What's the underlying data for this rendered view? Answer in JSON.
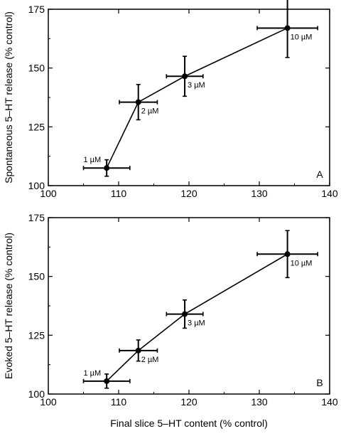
{
  "figure": {
    "xlabel": "Final slice 5–HT content (% control)"
  },
  "chart_data": [
    {
      "type": "scatter",
      "panel_label": "A",
      "ylabel": "Spontaneous 5–HT release (% control)",
      "xlim": [
        100,
        140
      ],
      "ylim": [
        100,
        175
      ],
      "x_ticks": [
        "100",
        "110",
        "120",
        "130",
        "140"
      ],
      "y_ticks": [
        "100",
        "125",
        "150",
        "175"
      ],
      "grid": false,
      "points": [
        {
          "label": "1 µM",
          "x": 108.3,
          "y": 107.5,
          "xerr": 3.3,
          "yerr": 3.5
        },
        {
          "label": "2 µM",
          "x": 112.8,
          "y": 135.5,
          "xerr": 2.7,
          "yerr": 7.5
        },
        {
          "label": "3 µM",
          "x": 119.4,
          "y": 146.5,
          "xerr": 2.6,
          "yerr": 8.5
        },
        {
          "label": "10 µM",
          "x": 134.0,
          "y": 167.0,
          "xerr": 4.3,
          "yerr": 12.5
        }
      ]
    },
    {
      "type": "scatter",
      "panel_label": "B",
      "ylabel": "Evoked 5–HT release (% control)",
      "xlim": [
        100,
        140
      ],
      "ylim": [
        100,
        175
      ],
      "x_ticks": [
        "100",
        "110",
        "120",
        "130",
        "140"
      ],
      "y_ticks": [
        "100",
        "125",
        "150",
        "175"
      ],
      "grid": false,
      "points": [
        {
          "label": "1 µM",
          "x": 108.3,
          "y": 105.5,
          "xerr": 3.3,
          "yerr": 3.0
        },
        {
          "label": "2 µM",
          "x": 112.8,
          "y": 118.5,
          "xerr": 2.7,
          "yerr": 4.5
        },
        {
          "label": "3 µM",
          "x": 119.4,
          "y": 134.0,
          "xerr": 2.6,
          "yerr": 6.0
        },
        {
          "label": "10 µM",
          "x": 134.0,
          "y": 159.5,
          "xerr": 4.3,
          "yerr": 10.0
        }
      ]
    }
  ]
}
